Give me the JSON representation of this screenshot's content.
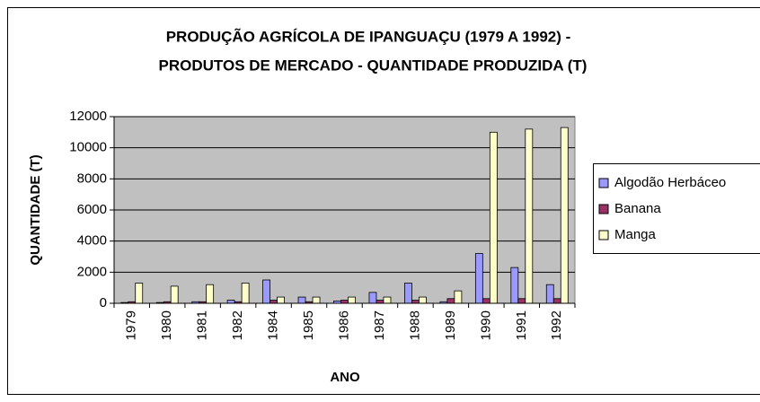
{
  "chart_data": {
    "type": "bar",
    "title": [
      "PRODUÇÃO AGRÍCOLA DE IPANGUAÇU (1979 A 1992) -",
      "PRODUTOS DE MERCADO - QUANTIDADE PRODUZIDA (T)"
    ],
    "x_label": "ANO",
    "y_label": "QUANTIDADE (T)",
    "categories": [
      "1979",
      "1980",
      "1981",
      "1982",
      "1984",
      "1985",
      "1986",
      "1987",
      "1988",
      "1989",
      "1990",
      "1991",
      "1992"
    ],
    "series": [
      {
        "name": "Algodão Herbáceo",
        "color": "#9999ff",
        "values": [
          50,
          50,
          100,
          200,
          1500,
          400,
          150,
          700,
          1300,
          100,
          3200,
          2300,
          1200
        ]
      },
      {
        "name": "Banana",
        "color": "#993366",
        "values": [
          100,
          100,
          100,
          100,
          200,
          100,
          200,
          200,
          200,
          300,
          300,
          300,
          300
        ]
      },
      {
        "name": "Manga",
        "color": "#ffffcc",
        "values": [
          1300,
          1100,
          1200,
          1300,
          400,
          400,
          400,
          400,
          400,
          800,
          11000,
          11200,
          11300
        ]
      }
    ],
    "ylim": [
      0,
      12000
    ],
    "yticks": [
      0,
      2000,
      4000,
      6000,
      8000,
      10000,
      12000
    ],
    "grid": true,
    "legend": "right"
  }
}
